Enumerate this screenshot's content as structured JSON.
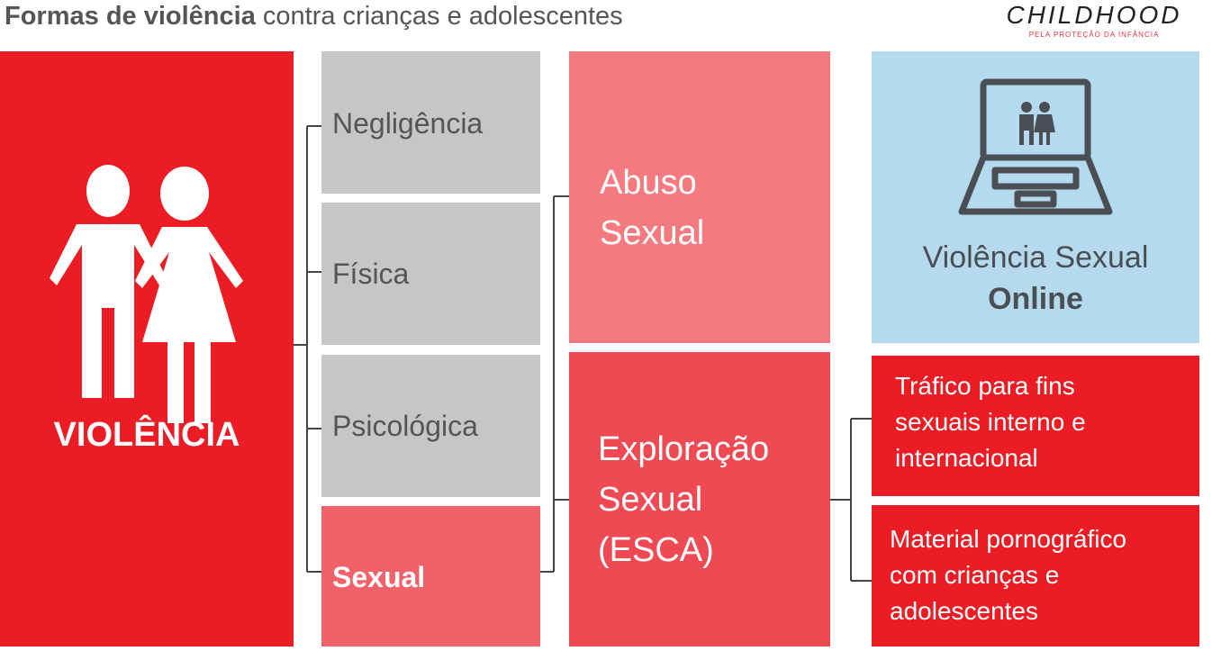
{
  "header": {
    "title_bold": "Formas de violência",
    "title_rest": "contra crianças e adolescentes",
    "logo": "CHILDHOOD",
    "logo_tagline": "PELA PROTEÇÃO DA INFÂNCIA"
  },
  "nodes": [
    {
      "id": "violencia",
      "lines": [
        "VIOLÊNCIA"
      ]
    },
    {
      "id": "negligencia",
      "lines": [
        "Negligência"
      ]
    },
    {
      "id": "fisica",
      "lines": [
        "Física"
      ]
    },
    {
      "id": "psicologica",
      "lines": [
        "Psicológica"
      ]
    },
    {
      "id": "sexual",
      "lines": [
        "Sexual"
      ]
    },
    {
      "id": "abuso",
      "lines": [
        "Abuso",
        "Sexual"
      ]
    },
    {
      "id": "exploracao",
      "lines": [
        "Exploração",
        "Sexual",
        "(ESCA)"
      ]
    },
    {
      "id": "online",
      "lines": [
        "Violência Sexual",
        "Online"
      ]
    },
    {
      "id": "trafico",
      "lines": [
        "Tráfico para fins",
        "sexuais interno e",
        "internacional"
      ]
    },
    {
      "id": "material",
      "lines": [
        "Material pornográfico",
        "com crianças e",
        "adolescentes"
      ]
    }
  ]
}
